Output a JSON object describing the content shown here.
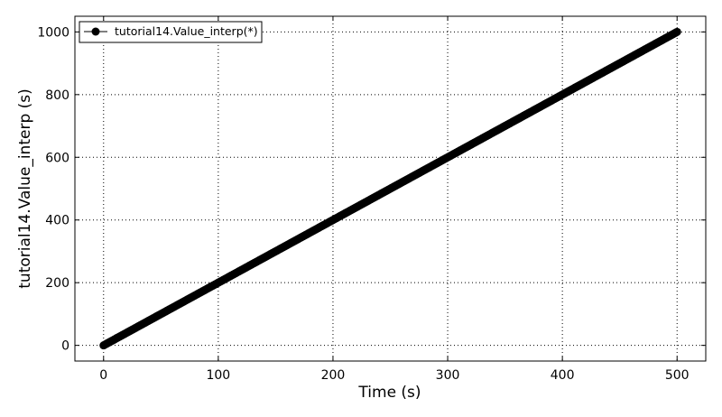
{
  "chart_data": {
    "type": "line",
    "title": "",
    "xlabel": "Time (s)",
    "ylabel": "tutorial14.Value_interp (s)",
    "xlim": [
      -25,
      525
    ],
    "ylim": [
      -50,
      1050
    ],
    "xticks": [
      0,
      100,
      200,
      300,
      400,
      500
    ],
    "yticks": [
      0,
      200,
      400,
      600,
      800,
      1000
    ],
    "xtick_labels": [
      "0",
      "100",
      "200",
      "300",
      "400",
      "500"
    ],
    "ytick_labels": [
      "0",
      "200",
      "400",
      "600",
      "800",
      "1000"
    ],
    "grid": true,
    "legend_position": "top-left",
    "series": [
      {
        "name": "tutorial14.Value_interp(*)",
        "color": "#000000",
        "marker": "circle",
        "x_start": 0,
        "x_end": 500,
        "x_step": 1,
        "slope": 2,
        "intercept": 0
      }
    ]
  }
}
